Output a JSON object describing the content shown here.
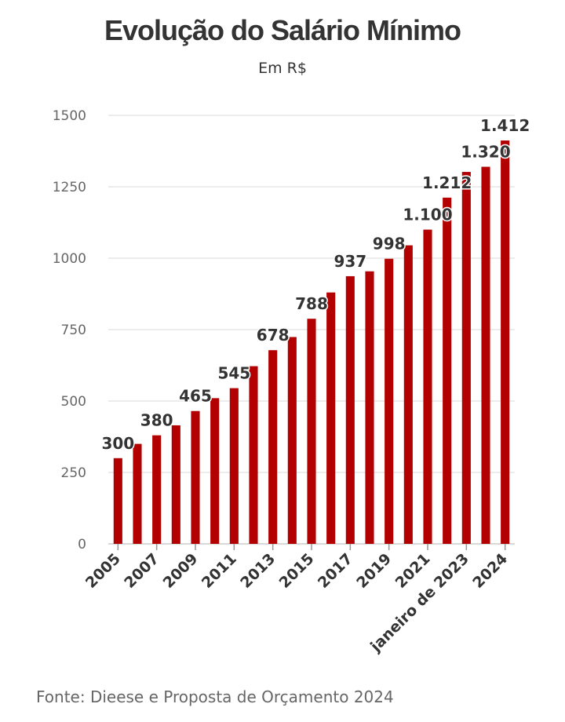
{
  "chart_data": {
    "type": "bar",
    "title": "Evolução do Salário Mínimo",
    "subtitle": "Em R$",
    "source": "Fonte: Dieese e Proposta de Orçamento 2024",
    "xlabel": "",
    "ylabel": "",
    "ylim": [
      0,
      1500
    ],
    "yticks": [
      "0",
      "250",
      "500",
      "750",
      "1000",
      "1250",
      "1500"
    ],
    "grid": true,
    "bar_color": "#b30000",
    "categories": [
      "2005",
      "2006",
      "2007",
      "2008",
      "2009",
      "2010",
      "2011",
      "2012",
      "2013",
      "2014",
      "2015",
      "2016",
      "2017",
      "2018",
      "2019",
      "2020",
      "2021",
      "2022",
      "janeiro de 2023",
      "2023",
      "2024"
    ],
    "values": [
      300,
      350,
      380,
      415,
      465,
      510,
      545,
      622,
      678,
      724,
      788,
      880,
      937,
      954,
      998,
      1045,
      1100,
      1212,
      1302,
      1320,
      1412
    ],
    "xtick_labels": [
      {
        "index": 0,
        "text": "2005"
      },
      {
        "index": 2,
        "text": "2007"
      },
      {
        "index": 4,
        "text": "2009"
      },
      {
        "index": 6,
        "text": "2011"
      },
      {
        "index": 8,
        "text": "2013"
      },
      {
        "index": 10,
        "text": "2015"
      },
      {
        "index": 12,
        "text": "2017"
      },
      {
        "index": 14,
        "text": "2019"
      },
      {
        "index": 16,
        "text": "2021"
      },
      {
        "index": 18,
        "text": "janeiro de 2023"
      },
      {
        "index": 20,
        "text": "2024"
      }
    ],
    "data_labels": [
      {
        "index": 0,
        "text": "300"
      },
      {
        "index": 2,
        "text": "380"
      },
      {
        "index": 4,
        "text": "465"
      },
      {
        "index": 6,
        "text": "545"
      },
      {
        "index": 8,
        "text": "678"
      },
      {
        "index": 10,
        "text": "788"
      },
      {
        "index": 12,
        "text": "937"
      },
      {
        "index": 14,
        "text": "998"
      },
      {
        "index": 16,
        "text": "1.100"
      },
      {
        "index": 17,
        "text": "1.212"
      },
      {
        "index": 19,
        "text": "1.320"
      },
      {
        "index": 20,
        "text": "1.412"
      }
    ]
  }
}
